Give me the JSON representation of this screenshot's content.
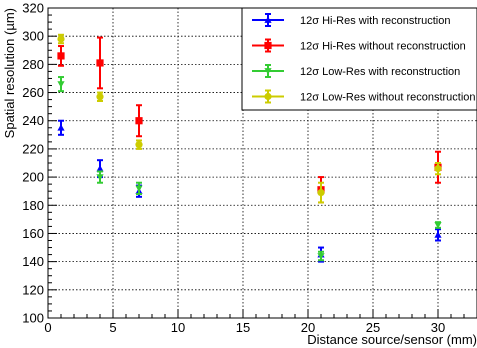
{
  "chart_data": {
    "type": "scatter",
    "title": "",
    "xlabel": "Distance source/sensor (mm)",
    "ylabel": "Spatial resolution (µm)",
    "xlim": [
      0,
      33
    ],
    "ylim": [
      100,
      320
    ],
    "x_ticks": [
      0,
      5,
      10,
      15,
      20,
      25,
      30
    ],
    "y_ticks": [
      100,
      120,
      140,
      160,
      180,
      200,
      220,
      240,
      260,
      280,
      300,
      320
    ],
    "grid": true,
    "legend_position": "top-right",
    "series": [
      {
        "name": "12σ Hi-Res with reconstruction",
        "color": "#0000ff",
        "marker": "triangle",
        "points": [
          {
            "x": 1,
            "y": 235,
            "err": 5
          },
          {
            "x": 4,
            "y": 206,
            "err": 6
          },
          {
            "x": 7,
            "y": 190,
            "err": 4
          },
          {
            "x": 21,
            "y": 145,
            "err": 5
          },
          {
            "x": 30,
            "y": 159,
            "err": 4
          }
        ]
      },
      {
        "name": "12σ Hi-Res without reconstruction",
        "color": "#ff0000",
        "marker": "square",
        "points": [
          {
            "x": 1,
            "y": 286,
            "err": 7
          },
          {
            "x": 4,
            "y": 281,
            "err": 18
          },
          {
            "x": 7,
            "y": 240,
            "err": 11
          },
          {
            "x": 21,
            "y": 191,
            "err": 9
          },
          {
            "x": 30,
            "y": 207,
            "err": 11
          }
        ]
      },
      {
        "name": "12σ Low-Res with reconstruction",
        "color": "#33cc33",
        "marker": "triangle-down",
        "points": [
          {
            "x": 1,
            "y": 266,
            "err": 5
          },
          {
            "x": 4,
            "y": 200,
            "err": 4
          },
          {
            "x": 7,
            "y": 192,
            "err": 4
          },
          {
            "x": 21,
            "y": 144,
            "err": 3
          },
          {
            "x": 30,
            "y": 166,
            "err": 2
          }
        ]
      },
      {
        "name": "12σ Low-Res without reconstruction",
        "color": "#cccc00",
        "marker": "circle",
        "points": [
          {
            "x": 1,
            "y": 298,
            "err": 3
          },
          {
            "x": 4,
            "y": 257,
            "err": 3
          },
          {
            "x": 7,
            "y": 223,
            "err": 3
          },
          {
            "x": 21,
            "y": 189,
            "err": 7
          },
          {
            "x": 30,
            "y": 206,
            "err": 4
          }
        ]
      }
    ]
  }
}
